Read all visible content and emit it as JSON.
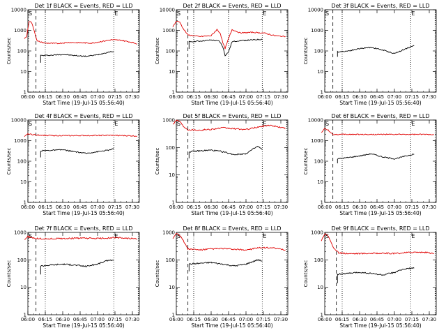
{
  "figure": {
    "xlabel_prefix": "Start Time",
    "start_time": "(19-Jul-15 05:56:40)",
    "ylabel": "Counts/sec",
    "event_markers": [
      "S",
      "E"
    ],
    "colors": {
      "events": "#000000",
      "lld": "#e00000"
    }
  },
  "chart_data": [
    {
      "type": "line",
      "title": "Det 1f BLACK = Events, RED = LLD",
      "xlabel": "Start Time (19-Jul-15 05:56:40)",
      "ylabel": "Counts/sec",
      "yscale": "log",
      "ylim": [
        1,
        10000
      ],
      "xlim": [
        "06:00",
        "07:36"
      ],
      "x_ticks": [
        "06:00",
        "06:15",
        "06:30",
        "06:45",
        "07:00",
        "07:15",
        "07:30"
      ],
      "y_ticks": [
        "1",
        "10",
        "100",
        "1000",
        "10000"
      ],
      "markers": {
        "S": "06:00",
        "E": "07:14"
      },
      "dashed_line": "06:07",
      "dotted_lines": [
        "06:15",
        "07:14",
        "07:35"
      ],
      "series": [
        {
          "name": "BLACK = Events",
          "color": "#000000",
          "x": [
            "06:11",
            "06:11",
            "06:20",
            "06:30",
            "06:40",
            "06:50",
            "07:00",
            "07:10",
            "07:14"
          ],
          "y": [
            28,
            60,
            62,
            68,
            60,
            55,
            65,
            90,
            95
          ]
        },
        {
          "name": "RED = LLD",
          "color": "#e00000",
          "x": [
            "05:57",
            "05:59",
            "06:01",
            "06:03",
            "06:05",
            "06:08",
            "06:15",
            "06:25",
            "06:35",
            "06:45",
            "06:55",
            "07:05",
            "07:12",
            "07:20",
            "07:30",
            "07:34"
          ],
          "y": [
            400,
            500,
            2800,
            2500,
            1200,
            300,
            240,
            230,
            260,
            250,
            240,
            300,
            350,
            330,
            260,
            220
          ]
        }
      ]
    },
    {
      "type": "line",
      "title": "Det 2f BLACK = Events, RED = LLD",
      "xlabel": "Start Time (19-Jul-15 05:56:40)",
      "ylabel": "Counts/sec",
      "yscale": "log",
      "ylim": [
        1,
        10000
      ],
      "xlim": [
        "06:00",
        "07:36"
      ],
      "x_ticks": [
        "06:00",
        "06:15",
        "06:30",
        "06:45",
        "07:00",
        "07:15",
        "07:30"
      ],
      "y_ticks": [
        "1",
        "10",
        "100",
        "1000",
        "10000"
      ],
      "markers": {
        "S": "06:00",
        "E": "07:14"
      },
      "dashed_line": "06:10",
      "dotted_lines": [
        "06:15",
        "06:45",
        "07:14"
      ],
      "series": [
        {
          "name": "BLACK = Events",
          "color": "#000000",
          "x": [
            "06:11",
            "06:11",
            "06:20",
            "06:30",
            "06:37",
            "06:40",
            "06:42",
            "06:45",
            "06:48",
            "06:55",
            "07:05",
            "07:14"
          ],
          "y": [
            120,
            280,
            300,
            340,
            300,
            160,
            60,
            90,
            280,
            320,
            340,
            370
          ]
        },
        {
          "name": "RED = LLD",
          "color": "#e00000",
          "x": [
            "05:57",
            "06:00",
            "06:03",
            "06:06",
            "06:10",
            "06:20",
            "06:30",
            "06:35",
            "06:38",
            "06:40",
            "06:42",
            "06:45",
            "06:48",
            "06:55",
            "07:05",
            "07:15",
            "07:25",
            "07:34"
          ],
          "y": [
            1500,
            2800,
            2500,
            1200,
            600,
            500,
            550,
            1100,
            700,
            250,
            130,
            400,
            1100,
            750,
            800,
            750,
            550,
            500
          ]
        }
      ]
    },
    {
      "type": "line",
      "title": "Det 3f BLACK = Events, RED = LLD",
      "xlabel": "Start Time (19-Jul-15 05:56:40)",
      "ylabel": "Counts/sec",
      "yscale": "log",
      "ylim": [
        1,
        10000
      ],
      "xlim": [
        "06:00",
        "07:36"
      ],
      "x_ticks": [
        "06:00",
        "06:15",
        "06:30",
        "06:45",
        "07:00",
        "07:15",
        "07:30"
      ],
      "y_ticks": [
        "1",
        "10",
        "100",
        "1000",
        "10000"
      ],
      "markers": {
        "S": "06:00",
        "E": "07:14"
      },
      "dashed_line": "06:07",
      "dotted_lines": [
        "06:15",
        "07:14",
        "07:35"
      ],
      "series": [
        {
          "name": "BLACK = Events",
          "color": "#000000",
          "x": [
            "06:11",
            "06:11",
            "06:20",
            "06:30",
            "06:40",
            "06:50",
            "07:00",
            "07:10",
            "07:17"
          ],
          "y": [
            50,
            90,
            100,
            130,
            150,
            110,
            75,
            130,
            180
          ]
        }
      ]
    },
    {
      "type": "line",
      "title": "Det 4f BLACK = Events, RED = LLD",
      "xlabel": "Start Time (19-Jul-15 05:56:40)",
      "ylabel": "Counts/sec",
      "yscale": "log",
      "ylim": [
        1,
        10000
      ],
      "xlim": [
        "06:00",
        "07:36"
      ],
      "x_ticks": [
        "06:00",
        "06:15",
        "06:30",
        "06:45",
        "07:00",
        "07:15",
        "07:30"
      ],
      "y_ticks": [
        "1",
        "10",
        "100",
        "1000",
        "10000"
      ],
      "markers": {
        "S": "06:00",
        "E": "07:14"
      },
      "dashed_line": "06:07",
      "dotted_lines": [
        "06:15",
        "07:14",
        "07:35"
      ],
      "series": [
        {
          "name": "BLACK = Events",
          "color": "#000000",
          "x": [
            "06:11",
            "06:11",
            "06:20",
            "06:30",
            "06:40",
            "06:50",
            "07:00",
            "07:10",
            "07:14"
          ],
          "y": [
            150,
            320,
            340,
            360,
            290,
            240,
            290,
            350,
            400
          ]
        },
        {
          "name": "RED = LLD",
          "color": "#e00000",
          "x": [
            "05:57",
            "06:00",
            "06:03",
            "06:07",
            "06:15",
            "06:30",
            "06:45",
            "07:00",
            "07:15",
            "07:30",
            "07:34"
          ],
          "y": [
            1500,
            2200,
            2000,
            1900,
            1800,
            1750,
            1750,
            1800,
            1800,
            1700,
            1650
          ]
        }
      ]
    },
    {
      "type": "line",
      "title": "Det 5f BLACK = Events, RED = LLD",
      "xlabel": "Start Time (19-Jul-15 05:56:40)",
      "ylabel": "Counts/sec",
      "yscale": "log",
      "ylim": [
        1,
        1000
      ],
      "xlim": [
        "06:00",
        "07:36"
      ],
      "x_ticks": [
        "06:00",
        "06:15",
        "06:30",
        "06:45",
        "07:00",
        "07:15",
        "07:30"
      ],
      "y_ticks": [
        "1",
        "10",
        "100",
        "1000"
      ],
      "markers": {
        "S": "06:00",
        "E": "07:14"
      },
      "dashed_line": "06:10",
      "dotted_lines": [
        "06:15",
        "07:14",
        "07:35"
      ],
      "series": [
        {
          "name": "BLACK = Events",
          "color": "#000000",
          "x": [
            "06:11",
            "06:11",
            "06:20",
            "06:30",
            "06:40",
            "06:50",
            "07:00",
            "07:10",
            "07:14"
          ],
          "y": [
            40,
            70,
            75,
            80,
            70,
            55,
            60,
            110,
            85
          ]
        },
        {
          "name": "RED = LLD",
          "color": "#e00000",
          "x": [
            "05:57",
            "06:00",
            "06:03",
            "06:06",
            "06:10",
            "06:20",
            "06:30",
            "06:40",
            "06:50",
            "07:00",
            "07:10",
            "07:20",
            "07:34"
          ],
          "y": [
            700,
            1000,
            900,
            600,
            450,
            430,
            460,
            520,
            480,
            450,
            550,
            650,
            500
          ]
        }
      ]
    },
    {
      "type": "line",
      "title": "Det 6f BLACK = Events, RED = LLD",
      "xlabel": "Start Time (19-Jul-15 05:56:40)",
      "ylabel": "Counts/sec",
      "yscale": "log",
      "ylim": [
        1,
        10000
      ],
      "xlim": [
        "06:00",
        "07:36"
      ],
      "x_ticks": [
        "06:00",
        "06:15",
        "06:30",
        "06:45",
        "07:00",
        "07:15",
        "07:30"
      ],
      "y_ticks": [
        "1",
        "10",
        "100",
        "1000",
        "10000"
      ],
      "markers": {
        "S": "06:00",
        "E": "07:14"
      },
      "dashed_line": "06:07",
      "dotted_lines": [
        "06:15",
        "07:14",
        "07:35"
      ],
      "series": [
        {
          "name": "BLACK = Events",
          "color": "#000000",
          "x": [
            "06:11",
            "06:11",
            "06:20",
            "06:30",
            "06:40",
            "06:50",
            "07:00",
            "07:10",
            "07:17"
          ],
          "y": [
            80,
            130,
            150,
            180,
            230,
            160,
            130,
            180,
            220
          ]
        },
        {
          "name": "RED = LLD",
          "color": "#e00000",
          "x": [
            "05:57",
            "06:00",
            "06:03",
            "06:07",
            "06:15",
            "06:30",
            "06:45",
            "07:00",
            "07:15",
            "07:34"
          ],
          "y": [
            2500,
            3800,
            3200,
            2000,
            2000,
            2000,
            2000,
            2000,
            2000,
            2000
          ]
        }
      ]
    },
    {
      "type": "line",
      "title": "Det 7f BLACK = Events, RED = LLD",
      "xlabel": "Start Time (19-Jul-15 05:56:40)",
      "ylabel": "Counts/sec",
      "yscale": "log",
      "ylim": [
        1,
        1000
      ],
      "xlim": [
        "06:00",
        "07:36"
      ],
      "x_ticks": [
        "06:00",
        "06:15",
        "06:30",
        "06:45",
        "07:00",
        "07:15",
        "07:30"
      ],
      "y_ticks": [
        "1",
        "10",
        "100",
        "1000"
      ],
      "markers": {
        "S": "06:00",
        "E": "07:14"
      },
      "dashed_line": "06:07",
      "dotted_lines": [
        "06:15",
        "07:14",
        "07:35"
      ],
      "series": [
        {
          "name": "BLACK = Events",
          "color": "#000000",
          "x": [
            "06:11",
            "06:11",
            "06:20",
            "06:30",
            "06:40",
            "06:50",
            "07:00",
            "07:10",
            "07:14"
          ],
          "y": [
            30,
            60,
            65,
            70,
            65,
            58,
            70,
            100,
            95
          ]
        },
        {
          "name": "RED = LLD",
          "color": "#e00000",
          "x": [
            "05:57",
            "06:00",
            "06:03",
            "06:07",
            "06:15",
            "06:30",
            "06:45",
            "07:00",
            "07:15",
            "07:30",
            "07:34"
          ],
          "y": [
            550,
            700,
            650,
            600,
            580,
            600,
            620,
            600,
            640,
            600,
            580
          ]
        }
      ]
    },
    {
      "type": "line",
      "title": "Det 8f BLACK = Events, RED = LLD",
      "xlabel": "Start Time (19-Jul-15 05:56:40)",
      "ylabel": "Counts/sec",
      "yscale": "log",
      "ylim": [
        1,
        1000
      ],
      "xlim": [
        "06:00",
        "07:36"
      ],
      "x_ticks": [
        "06:00",
        "06:15",
        "06:30",
        "06:45",
        "07:00",
        "07:15",
        "07:30"
      ],
      "y_ticks": [
        "1",
        "10",
        "100",
        "1000"
      ],
      "markers": {
        "S": "06:00",
        "E": "07:14"
      },
      "dashed_line": "06:10",
      "dotted_lines": [
        "06:15",
        "07:14",
        "07:35"
      ],
      "series": [
        {
          "name": "BLACK = Events",
          "color": "#000000",
          "x": [
            "06:11",
            "06:11",
            "06:20",
            "06:30",
            "06:40",
            "06:50",
            "07:00",
            "07:10",
            "07:14"
          ],
          "y": [
            40,
            70,
            75,
            80,
            70,
            60,
            70,
            100,
            90
          ]
        },
        {
          "name": "RED = LLD",
          "color": "#e00000",
          "x": [
            "05:57",
            "06:00",
            "06:03",
            "06:06",
            "06:10",
            "06:20",
            "06:30",
            "06:40",
            "06:50",
            "07:00",
            "07:10",
            "07:20",
            "07:34"
          ],
          "y": [
            600,
            950,
            800,
            500,
            250,
            230,
            250,
            260,
            240,
            230,
            270,
            280,
            230
          ]
        }
      ]
    },
    {
      "type": "line",
      "title": "Det 9f BLACK = Events, RED = LLD",
      "xlabel": "Start Time (19-Jul-15 05:56:40)",
      "ylabel": "Counts/sec",
      "yscale": "log",
      "ylim": [
        1,
        1000
      ],
      "xlim": [
        "06:00",
        "07:36"
      ],
      "x_ticks": [
        "06:00",
        "06:15",
        "06:30",
        "06:45",
        "07:00",
        "07:15",
        "07:30"
      ],
      "y_ticks": [
        "1",
        "10",
        "100",
        "1000"
      ],
      "markers": {
        "S": "06:00",
        "E": "07:14"
      },
      "dashed_line": "06:10",
      "dotted_lines": [
        "06:15",
        "07:14",
        "07:35"
      ],
      "series": [
        {
          "name": "BLACK = Events",
          "color": "#000000",
          "x": [
            "06:11",
            "06:11",
            "06:20",
            "06:30",
            "06:40",
            "06:50",
            "07:00",
            "07:10",
            "07:17"
          ],
          "y": [
            15,
            30,
            32,
            35,
            32,
            28,
            35,
            48,
            50
          ]
        },
        {
          "name": "RED = LLD",
          "color": "#e00000",
          "x": [
            "05:57",
            "06:00",
            "06:02",
            "06:05",
            "06:08",
            "06:12",
            "06:20",
            "06:30",
            "06:45",
            "07:00",
            "07:15",
            "07:25",
            "07:34"
          ],
          "y": [
            500,
            900,
            850,
            500,
            250,
            180,
            170,
            170,
            175,
            170,
            190,
            190,
            170
          ]
        }
      ]
    }
  ]
}
